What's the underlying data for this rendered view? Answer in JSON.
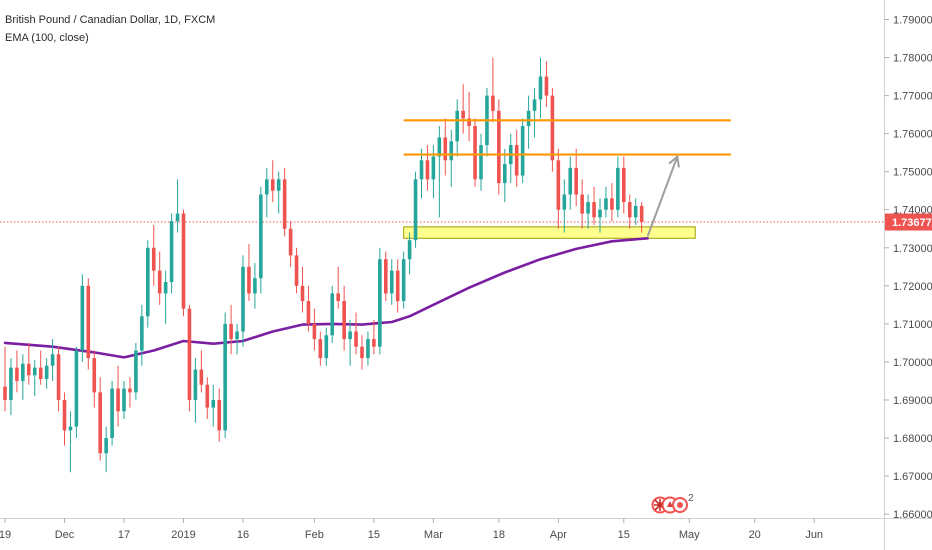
{
  "chart_data": {
    "type": "candlestick",
    "title": "British Pound / Canadian Dollar, 1D, FXCM",
    "indicator_label": "EMA (100, close)",
    "current_price_label": "1.73677",
    "current_price": 1.73677,
    "ylim": [
      1.6595,
      1.7925
    ],
    "grid": false,
    "colors": {
      "up": "#26a69a",
      "down": "#ef5350",
      "ema": "#7b1fa2",
      "resistance": "#ff9800",
      "support_fill": "#ffff8d",
      "support_stroke": "#9e9e00",
      "arrow": "#9e9e9e",
      "price_line": "#ef5350",
      "badge": "#ef5350"
    },
    "y_ticks": [
      {
        "value": 1.79,
        "label": "1.79000"
      },
      {
        "value": 1.78,
        "label": "1.78000"
      },
      {
        "value": 1.77,
        "label": "1.77000"
      },
      {
        "value": 1.76,
        "label": "1.76000"
      },
      {
        "value": 1.75,
        "label": "1.75000"
      },
      {
        "value": 1.74,
        "label": "1.74000"
      },
      {
        "value": 1.73,
        "label": "1.73000"
      },
      {
        "value": 1.72,
        "label": "1.72000"
      },
      {
        "value": 1.71,
        "label": "1.71000"
      },
      {
        "value": 1.7,
        "label": "1.70000"
      },
      {
        "value": 1.69,
        "label": "1.69000"
      },
      {
        "value": 1.68,
        "label": "1.68000"
      },
      {
        "value": 1.67,
        "label": "1.67000"
      },
      {
        "value": 1.66,
        "label": "1.66000"
      }
    ],
    "x_ticks": [
      {
        "index": 0,
        "label": "19"
      },
      {
        "index": 10,
        "label": "Dec"
      },
      {
        "index": 20,
        "label": "17"
      },
      {
        "index": 30,
        "label": "2019"
      },
      {
        "index": 40,
        "label": "16"
      },
      {
        "index": 52,
        "label": "Feb"
      },
      {
        "index": 62,
        "label": "15"
      },
      {
        "index": 72,
        "label": "Mar"
      },
      {
        "index": 83,
        "label": "18"
      },
      {
        "index": 93,
        "label": "Apr"
      },
      {
        "index": 104,
        "label": "15"
      },
      {
        "index": 115,
        "label": "May"
      },
      {
        "index": 126,
        "label": "20"
      },
      {
        "index": 136,
        "label": "Jun"
      }
    ],
    "bars": [
      [
        1.6935,
        1.704,
        1.687,
        1.69
      ],
      [
        1.69,
        1.701,
        1.686,
        1.6985
      ],
      [
        1.6985,
        1.703,
        1.692,
        1.695
      ],
      [
        1.695,
        1.702,
        1.69,
        1.6995
      ],
      [
        1.6995,
        1.705,
        1.694,
        1.6965
      ],
      [
        1.6965,
        1.7005,
        1.691,
        1.6985
      ],
      [
        1.6985,
        1.703,
        1.694,
        1.6955
      ],
      [
        1.6955,
        1.701,
        1.693,
        1.699
      ],
      [
        1.699,
        1.706,
        1.695,
        1.702
      ],
      [
        1.702,
        1.704,
        1.687,
        1.69
      ],
      [
        1.69,
        1.692,
        1.678,
        1.682
      ],
      [
        1.682,
        1.687,
        1.671,
        1.683
      ],
      [
        1.683,
        1.704,
        1.68,
        1.703
      ],
      [
        1.703,
        1.723,
        1.7,
        1.72
      ],
      [
        1.72,
        1.722,
        1.698,
        1.701
      ],
      [
        1.701,
        1.703,
        1.688,
        1.692
      ],
      [
        1.692,
        1.696,
        1.674,
        1.676
      ],
      [
        1.676,
        1.683,
        1.671,
        1.68
      ],
      [
        1.68,
        1.695,
        1.678,
        1.693
      ],
      [
        1.693,
        1.699,
        1.683,
        1.687
      ],
      [
        1.687,
        1.695,
        1.685,
        1.693
      ],
      [
        1.693,
        1.696,
        1.688,
        1.692
      ],
      [
        1.692,
        1.705,
        1.69,
        1.703
      ],
      [
        1.703,
        1.715,
        1.699,
        1.712
      ],
      [
        1.712,
        1.732,
        1.709,
        1.73
      ],
      [
        1.73,
        1.736,
        1.72,
        1.724
      ],
      [
        1.724,
        1.729,
        1.715,
        1.718
      ],
      [
        1.718,
        1.724,
        1.71,
        1.721
      ],
      [
        1.721,
        1.739,
        1.718,
        1.737
      ],
      [
        1.737,
        1.748,
        1.734,
        1.739
      ],
      [
        1.739,
        1.74,
        1.712,
        1.714
      ],
      [
        1.714,
        1.715,
        1.687,
        1.69
      ],
      [
        1.69,
        1.701,
        1.684,
        1.698
      ],
      [
        1.698,
        1.703,
        1.692,
        1.694
      ],
      [
        1.694,
        1.696,
        1.685,
        1.688
      ],
      [
        1.688,
        1.694,
        1.683,
        1.69
      ],
      [
        1.69,
        1.693,
        1.679,
        1.682
      ],
      [
        1.682,
        1.713,
        1.68,
        1.71
      ],
      [
        1.71,
        1.715,
        1.702,
        1.706
      ],
      [
        1.706,
        1.71,
        1.702,
        1.708
      ],
      [
        1.708,
        1.728,
        1.704,
        1.725
      ],
      [
        1.725,
        1.731,
        1.716,
        1.718
      ],
      [
        1.718,
        1.726,
        1.714,
        1.722
      ],
      [
        1.722,
        1.746,
        1.718,
        1.744
      ],
      [
        1.744,
        1.751,
        1.738,
        1.748
      ],
      [
        1.748,
        1.753,
        1.742,
        1.745
      ],
      [
        1.745,
        1.75,
        1.739,
        1.748
      ],
      [
        1.748,
        1.751,
        1.733,
        1.735
      ],
      [
        1.735,
        1.737,
        1.725,
        1.728
      ],
      [
        1.728,
        1.73,
        1.718,
        1.72
      ],
      [
        1.72,
        1.725,
        1.713,
        1.716
      ],
      [
        1.716,
        1.72,
        1.708,
        1.71
      ],
      [
        1.71,
        1.714,
        1.703,
        1.706
      ],
      [
        1.706,
        1.708,
        1.699,
        1.701
      ],
      [
        1.701,
        1.709,
        1.699,
        1.707
      ],
      [
        1.707,
        1.72,
        1.705,
        1.718
      ],
      [
        1.718,
        1.725,
        1.714,
        1.716
      ],
      [
        1.716,
        1.72,
        1.703,
        1.706
      ],
      [
        1.706,
        1.711,
        1.699,
        1.708
      ],
      [
        1.708,
        1.713,
        1.702,
        1.704
      ],
      [
        1.704,
        1.707,
        1.698,
        1.701
      ],
      [
        1.701,
        1.708,
        1.699,
        1.706
      ],
      [
        1.706,
        1.711,
        1.702,
        1.704
      ],
      [
        1.704,
        1.73,
        1.702,
        1.727
      ],
      [
        1.727,
        1.729,
        1.716,
        1.718
      ],
      [
        1.718,
        1.727,
        1.715,
        1.724
      ],
      [
        1.724,
        1.727,
        1.713,
        1.716
      ],
      [
        1.716,
        1.729,
        1.714,
        1.727
      ],
      [
        1.727,
        1.734,
        1.723,
        1.732
      ],
      [
        1.732,
        1.75,
        1.73,
        1.748
      ],
      [
        1.748,
        1.756,
        1.743,
        1.753
      ],
      [
        1.753,
        1.757,
        1.745,
        1.748
      ],
      [
        1.748,
        1.757,
        1.743,
        1.754
      ],
      [
        1.754,
        1.762,
        1.738,
        1.759
      ],
      [
        1.759,
        1.764,
        1.749,
        1.753
      ],
      [
        1.753,
        1.761,
        1.746,
        1.758
      ],
      [
        1.758,
        1.769,
        1.754,
        1.766
      ],
      [
        1.766,
        1.773,
        1.76,
        1.764
      ],
      [
        1.764,
        1.771,
        1.758,
        1.762
      ],
      [
        1.762,
        1.764,
        1.746,
        1.748
      ],
      [
        1.748,
        1.76,
        1.745,
        1.757
      ],
      [
        1.757,
        1.772,
        1.754,
        1.77
      ],
      [
        1.77,
        1.78,
        1.763,
        1.766
      ],
      [
        1.766,
        1.769,
        1.744,
        1.747
      ],
      [
        1.747,
        1.756,
        1.742,
        1.752
      ],
      [
        1.752,
        1.76,
        1.747,
        1.757
      ],
      [
        1.757,
        1.761,
        1.746,
        1.749
      ],
      [
        1.749,
        1.764,
        1.747,
        1.762
      ],
      [
        1.762,
        1.77,
        1.756,
        1.766
      ],
      [
        1.766,
        1.772,
        1.759,
        1.769
      ],
      [
        1.769,
        1.78,
        1.764,
        1.775
      ],
      [
        1.775,
        1.779,
        1.767,
        1.77
      ],
      [
        1.77,
        1.772,
        1.75,
        1.753
      ],
      [
        1.753,
        1.756,
        1.735,
        1.74
      ],
      [
        1.74,
        1.748,
        1.734,
        1.744
      ],
      [
        1.744,
        1.754,
        1.74,
        1.751
      ],
      [
        1.751,
        1.756,
        1.741,
        1.744
      ],
      [
        1.744,
        1.748,
        1.735,
        1.739
      ],
      [
        1.739,
        1.744,
        1.735,
        1.742
      ],
      [
        1.742,
        1.746,
        1.736,
        1.738
      ],
      [
        1.738,
        1.743,
        1.734,
        1.74
      ],
      [
        1.74,
        1.746,
        1.738,
        1.743
      ],
      [
        1.743,
        1.747,
        1.737,
        1.74
      ],
      [
        1.74,
        1.754,
        1.738,
        1.751
      ],
      [
        1.751,
        1.754,
        1.739,
        1.742
      ],
      [
        1.742,
        1.744,
        1.735,
        1.738
      ],
      [
        1.738,
        1.743,
        1.736,
        1.741
      ],
      [
        1.741,
        1.742,
        1.734,
        1.7368
      ]
    ],
    "ema": [
      {
        "index": 0,
        "value": 1.705
      },
      {
        "index": 8,
        "value": 1.704
      },
      {
        "index": 15,
        "value": 1.7025
      },
      {
        "index": 20,
        "value": 1.7012
      },
      {
        "index": 25,
        "value": 1.703
      },
      {
        "index": 30,
        "value": 1.7055
      },
      {
        "index": 35,
        "value": 1.7048
      },
      {
        "index": 40,
        "value": 1.7055
      },
      {
        "index": 45,
        "value": 1.708
      },
      {
        "index": 50,
        "value": 1.7098
      },
      {
        "index": 55,
        "value": 1.71
      },
      {
        "index": 60,
        "value": 1.7098
      },
      {
        "index": 65,
        "value": 1.7105
      },
      {
        "index": 68,
        "value": 1.712
      },
      {
        "index": 72,
        "value": 1.715
      },
      {
        "index": 78,
        "value": 1.7195
      },
      {
        "index": 84,
        "value": 1.7235
      },
      {
        "index": 90,
        "value": 1.727
      },
      {
        "index": 96,
        "value": 1.7297
      },
      {
        "index": 102,
        "value": 1.7317
      },
      {
        "index": 108,
        "value": 1.7325
      }
    ],
    "resistance_lines": [
      {
        "start_index": 67,
        "end_index": 122,
        "value": 1.7635
      },
      {
        "start_index": 67,
        "end_index": 122,
        "value": 1.7545
      }
    ],
    "support_zone": {
      "start_index": 67,
      "end_index": 116,
      "low": 1.7325,
      "high": 1.7355
    },
    "projection_arrow": {
      "from_index": 108,
      "from_value": 1.733,
      "to_index": 113,
      "to_value": 1.754
    },
    "news_badge_label": "2"
  }
}
